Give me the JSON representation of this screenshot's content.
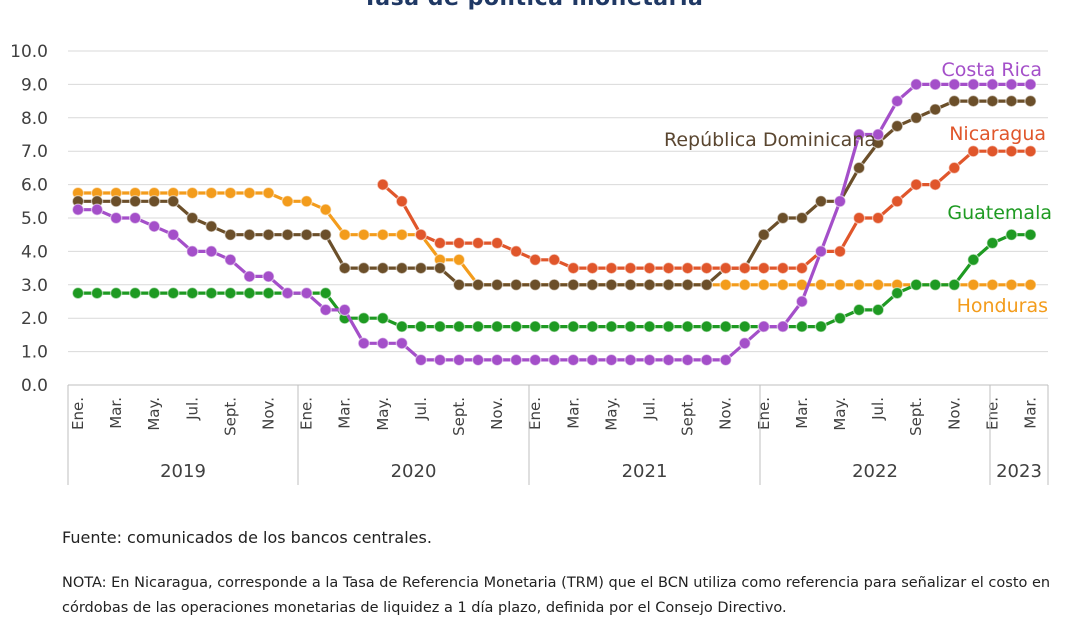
{
  "chart_data": {
    "type": "line",
    "title": "Tasa de política monetaria",
    "ylim": [
      0,
      10
    ],
    "yticks": [
      "0.0",
      "1.0",
      "2.0",
      "3.0",
      "4.0",
      "5.0",
      "6.0",
      "7.0",
      "8.0",
      "9.0",
      "10.0"
    ],
    "grid": true,
    "month_labels": [
      "Ene.",
      "Mar.",
      "May.",
      "Jul.",
      "Sept.",
      "Nov.",
      "Ene.",
      "Mar.",
      "May.",
      "Jul.",
      "Sept.",
      "Nov.",
      "Ene.",
      "Mar.",
      "May.",
      "Jul.",
      "Sept.",
      "Nov.",
      "Ene.",
      "Mar.",
      "May.",
      "Jul.",
      "Sept.",
      "Nov.",
      "Ene.",
      "Mar."
    ],
    "years": [
      "2019",
      "2020",
      "2021",
      "2022",
      "2023"
    ],
    "x": [
      "2019-01",
      "2019-02",
      "2019-03",
      "2019-04",
      "2019-05",
      "2019-06",
      "2019-07",
      "2019-08",
      "2019-09",
      "2019-10",
      "2019-11",
      "2019-12",
      "2020-01",
      "2020-02",
      "2020-03",
      "2020-04",
      "2020-05",
      "2020-06",
      "2020-07",
      "2020-08",
      "2020-09",
      "2020-10",
      "2020-11",
      "2020-12",
      "2021-01",
      "2021-02",
      "2021-03",
      "2021-04",
      "2021-05",
      "2021-06",
      "2021-07",
      "2021-08",
      "2021-09",
      "2021-10",
      "2021-11",
      "2021-12",
      "2022-01",
      "2022-02",
      "2022-03",
      "2022-04",
      "2022-05",
      "2022-06",
      "2022-07",
      "2022-08",
      "2022-09",
      "2022-10",
      "2022-11",
      "2022-12",
      "2023-01",
      "2023-02",
      "2023-03"
    ],
    "series": [
      {
        "name": "Honduras",
        "color": "#f39c1c",
        "label_color": "#f39c1c",
        "values": [
          5.75,
          5.75,
          5.75,
          5.75,
          5.75,
          5.75,
          5.75,
          5.75,
          5.75,
          5.75,
          5.75,
          5.5,
          5.5,
          5.25,
          4.5,
          4.5,
          4.5,
          4.5,
          4.5,
          3.75,
          3.75,
          3.0,
          3.0,
          3.0,
          3.0,
          3.0,
          3.0,
          3.0,
          3.0,
          3.0,
          3.0,
          3.0,
          3.0,
          3.0,
          3.0,
          3.0,
          3.0,
          3.0,
          3.0,
          3.0,
          3.0,
          3.0,
          3.0,
          3.0,
          3.0,
          3.0,
          3.0,
          3.0,
          3.0,
          3.0,
          3.0
        ]
      },
      {
        "name": "República Dominicana",
        "color": "#6b4f2a",
        "label_color": "#5a4630",
        "values": [
          5.5,
          5.5,
          5.5,
          5.5,
          5.5,
          5.5,
          5.0,
          4.75,
          4.5,
          4.5,
          4.5,
          4.5,
          4.5,
          4.5,
          3.5,
          3.5,
          3.5,
          3.5,
          3.5,
          3.5,
          3.0,
          3.0,
          3.0,
          3.0,
          3.0,
          3.0,
          3.0,
          3.0,
          3.0,
          3.0,
          3.0,
          3.0,
          3.0,
          3.0,
          3.5,
          3.5,
          4.5,
          5.0,
          5.0,
          5.5,
          5.5,
          6.5,
          7.25,
          7.75,
          8.0,
          8.25,
          8.5,
          8.5,
          8.5,
          8.5,
          8.5
        ]
      },
      {
        "name": "Nicaragua",
        "color": "#e0562b",
        "label_color": "#e0562b",
        "values": [
          null,
          null,
          null,
          null,
          null,
          null,
          null,
          null,
          null,
          null,
          null,
          null,
          null,
          null,
          null,
          null,
          6.0,
          5.5,
          4.5,
          4.25,
          4.25,
          4.25,
          4.25,
          4.0,
          3.75,
          3.75,
          3.5,
          3.5,
          3.5,
          3.5,
          3.5,
          3.5,
          3.5,
          3.5,
          3.5,
          3.5,
          3.5,
          3.5,
          3.5,
          4.0,
          4.0,
          5.0,
          5.0,
          5.5,
          6.0,
          6.0,
          6.5,
          7.0,
          7.0,
          7.0,
          7.0
        ]
      },
      {
        "name": "Guatemala",
        "color": "#1e9a22",
        "label_color": "#1e9a22",
        "values": [
          2.75,
          2.75,
          2.75,
          2.75,
          2.75,
          2.75,
          2.75,
          2.75,
          2.75,
          2.75,
          2.75,
          2.75,
          2.75,
          2.75,
          2.0,
          2.0,
          2.0,
          1.75,
          1.75,
          1.75,
          1.75,
          1.75,
          1.75,
          1.75,
          1.75,
          1.75,
          1.75,
          1.75,
          1.75,
          1.75,
          1.75,
          1.75,
          1.75,
          1.75,
          1.75,
          1.75,
          1.75,
          1.75,
          1.75,
          1.75,
          2.0,
          2.25,
          2.25,
          2.75,
          3.0,
          3.0,
          3.0,
          3.75,
          4.25,
          4.5,
          4.5
        ]
      },
      {
        "name": "Costa Rica",
        "color": "#a44fc9",
        "label_color": "#a44fc9",
        "values": [
          5.25,
          5.25,
          5.0,
          5.0,
          4.75,
          4.5,
          4.0,
          4.0,
          3.75,
          3.25,
          3.25,
          2.75,
          2.75,
          2.25,
          2.25,
          1.25,
          1.25,
          1.25,
          0.75,
          0.75,
          0.75,
          0.75,
          0.75,
          0.75,
          0.75,
          0.75,
          0.75,
          0.75,
          0.75,
          0.75,
          0.75,
          0.75,
          0.75,
          0.75,
          0.75,
          1.25,
          1.75,
          1.75,
          2.5,
          4.0,
          5.5,
          7.5,
          7.5,
          8.5,
          9.0,
          9.0,
          9.0,
          9.0,
          9.0,
          9.0,
          9.0
        ]
      }
    ]
  },
  "notes": {
    "source": "Fuente: comunicados de los bancos centrales.",
    "nota": "NOTA: En Nicaragua, corresponde a la Tasa de Referencia Monetaria (TRM) que el BCN utiliza como referencia para señalizar el costo en córdobas de las operaciones monetarias de liquidez a 1 día plazo, definida por el Consejo Directivo."
  }
}
